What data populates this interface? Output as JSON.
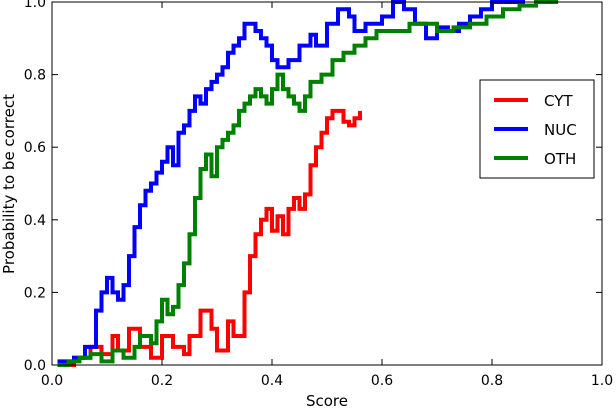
{
  "chart_data": {
    "type": "line",
    "title": "",
    "xlabel": "Score",
    "ylabel": "Probability to be correct",
    "xlim": [
      0.0,
      1.0
    ],
    "ylim": [
      0.0,
      1.0
    ],
    "xticks": [
      "0.0",
      "0.2",
      "0.4",
      "0.6",
      "0.8",
      "1.0"
    ],
    "yticks": [
      "0.0",
      "0.2",
      "0.4",
      "0.6",
      "0.8",
      "1.0"
    ],
    "grid": false,
    "legend_position": "center-right",
    "series": [
      {
        "name": "CYT",
        "color": "#ff0000",
        "points": [
          [
            0.01,
            0.0
          ],
          [
            0.04,
            0.02
          ],
          [
            0.07,
            0.05
          ],
          [
            0.09,
            0.03
          ],
          [
            0.11,
            0.08
          ],
          [
            0.12,
            0.04
          ],
          [
            0.14,
            0.1
          ],
          [
            0.16,
            0.05
          ],
          [
            0.18,
            0.02
          ],
          [
            0.2,
            0.08
          ],
          [
            0.22,
            0.05
          ],
          [
            0.24,
            0.03
          ],
          [
            0.25,
            0.08
          ],
          [
            0.27,
            0.15
          ],
          [
            0.29,
            0.1
          ],
          [
            0.3,
            0.04
          ],
          [
            0.32,
            0.12
          ],
          [
            0.33,
            0.08
          ],
          [
            0.35,
            0.2
          ],
          [
            0.36,
            0.3
          ],
          [
            0.37,
            0.36
          ],
          [
            0.38,
            0.4
          ],
          [
            0.39,
            0.43
          ],
          [
            0.4,
            0.37
          ],
          [
            0.41,
            0.41
          ],
          [
            0.42,
            0.36
          ],
          [
            0.43,
            0.43
          ],
          [
            0.44,
            0.46
          ],
          [
            0.45,
            0.43
          ],
          [
            0.46,
            0.47
          ],
          [
            0.47,
            0.55
          ],
          [
            0.48,
            0.6
          ],
          [
            0.49,
            0.64
          ],
          [
            0.5,
            0.68
          ],
          [
            0.51,
            0.7
          ],
          [
            0.52,
            0.7
          ],
          [
            0.53,
            0.67
          ],
          [
            0.54,
            0.66
          ],
          [
            0.55,
            0.68
          ],
          [
            0.56,
            0.7
          ]
        ]
      },
      {
        "name": "NUC",
        "color": "#0000ff",
        "points": [
          [
            0.01,
            0.01
          ],
          [
            0.04,
            0.02
          ],
          [
            0.06,
            0.05
          ],
          [
            0.08,
            0.15
          ],
          [
            0.09,
            0.2
          ],
          [
            0.1,
            0.24
          ],
          [
            0.11,
            0.2
          ],
          [
            0.12,
            0.18
          ],
          [
            0.13,
            0.22
          ],
          [
            0.14,
            0.3
          ],
          [
            0.15,
            0.38
          ],
          [
            0.16,
            0.44
          ],
          [
            0.17,
            0.48
          ],
          [
            0.18,
            0.5
          ],
          [
            0.19,
            0.53
          ],
          [
            0.2,
            0.56
          ],
          [
            0.21,
            0.6
          ],
          [
            0.22,
            0.55
          ],
          [
            0.23,
            0.64
          ],
          [
            0.24,
            0.66
          ],
          [
            0.25,
            0.7
          ],
          [
            0.26,
            0.74
          ],
          [
            0.27,
            0.72
          ],
          [
            0.28,
            0.76
          ],
          [
            0.29,
            0.78
          ],
          [
            0.3,
            0.8
          ],
          [
            0.31,
            0.82
          ],
          [
            0.32,
            0.86
          ],
          [
            0.33,
            0.88
          ],
          [
            0.34,
            0.9
          ],
          [
            0.35,
            0.94
          ],
          [
            0.36,
            0.94
          ],
          [
            0.37,
            0.92
          ],
          [
            0.38,
            0.9
          ],
          [
            0.39,
            0.88
          ],
          [
            0.4,
            0.84
          ],
          [
            0.41,
            0.82
          ],
          [
            0.43,
            0.84
          ],
          [
            0.45,
            0.88
          ],
          [
            0.47,
            0.91
          ],
          [
            0.48,
            0.88
          ],
          [
            0.5,
            0.94
          ],
          [
            0.52,
            0.98
          ],
          [
            0.54,
            0.96
          ],
          [
            0.55,
            0.92
          ],
          [
            0.57,
            0.94
          ],
          [
            0.6,
            0.96
          ],
          [
            0.62,
            1.0
          ],
          [
            0.64,
            0.98
          ],
          [
            0.66,
            0.94
          ],
          [
            0.68,
            0.9
          ],
          [
            0.7,
            0.93
          ],
          [
            0.72,
            0.92
          ],
          [
            0.74,
            0.94
          ],
          [
            0.76,
            0.96
          ],
          [
            0.78,
            0.98
          ],
          [
            0.8,
            1.0
          ],
          [
            0.83,
            1.0
          ],
          [
            0.86,
            1.0
          ]
        ]
      },
      {
        "name": "OTH",
        "color": "#008000",
        "points": [
          [
            0.01,
            0.0
          ],
          [
            0.03,
            0.01
          ],
          [
            0.05,
            0.02
          ],
          [
            0.07,
            0.03
          ],
          [
            0.09,
            0.01
          ],
          [
            0.11,
            0.04
          ],
          [
            0.13,
            0.02
          ],
          [
            0.15,
            0.05
          ],
          [
            0.16,
            0.08
          ],
          [
            0.18,
            0.06
          ],
          [
            0.19,
            0.12
          ],
          [
            0.2,
            0.18
          ],
          [
            0.21,
            0.14
          ],
          [
            0.22,
            0.16
          ],
          [
            0.23,
            0.22
          ],
          [
            0.24,
            0.28
          ],
          [
            0.25,
            0.36
          ],
          [
            0.26,
            0.46
          ],
          [
            0.27,
            0.54
          ],
          [
            0.28,
            0.58
          ],
          [
            0.29,
            0.52
          ],
          [
            0.3,
            0.6
          ],
          [
            0.31,
            0.62
          ],
          [
            0.32,
            0.64
          ],
          [
            0.33,
            0.66
          ],
          [
            0.34,
            0.7
          ],
          [
            0.35,
            0.72
          ],
          [
            0.36,
            0.74
          ],
          [
            0.37,
            0.76
          ],
          [
            0.38,
            0.74
          ],
          [
            0.39,
            0.72
          ],
          [
            0.4,
            0.76
          ],
          [
            0.41,
            0.8
          ],
          [
            0.42,
            0.76
          ],
          [
            0.43,
            0.74
          ],
          [
            0.44,
            0.72
          ],
          [
            0.45,
            0.7
          ],
          [
            0.46,
            0.74
          ],
          [
            0.47,
            0.78
          ],
          [
            0.49,
            0.8
          ],
          [
            0.51,
            0.84
          ],
          [
            0.53,
            0.86
          ],
          [
            0.55,
            0.88
          ],
          [
            0.57,
            0.9
          ],
          [
            0.59,
            0.92
          ],
          [
            0.62,
            0.92
          ],
          [
            0.65,
            0.94
          ],
          [
            0.68,
            0.94
          ],
          [
            0.7,
            0.92
          ],
          [
            0.73,
            0.93
          ],
          [
            0.76,
            0.94
          ],
          [
            0.79,
            0.96
          ],
          [
            0.82,
            0.98
          ],
          [
            0.85,
            0.99
          ],
          [
            0.88,
            1.0
          ],
          [
            0.92,
            1.0
          ]
        ]
      }
    ]
  }
}
